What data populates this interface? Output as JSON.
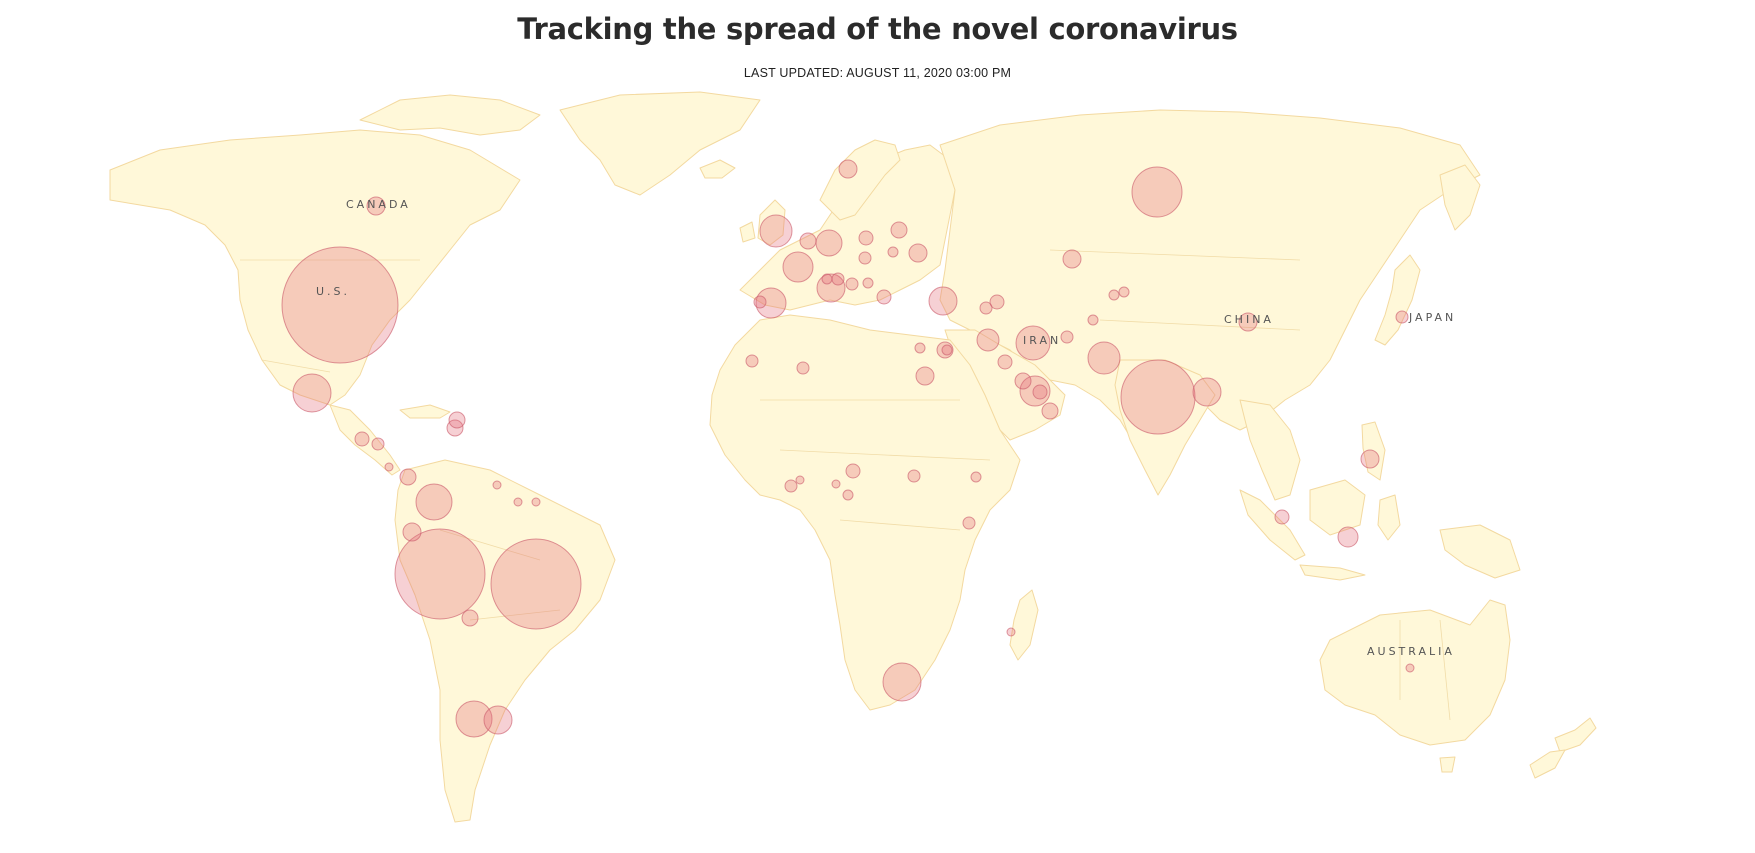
{
  "page": {
    "title": "Tracking the spread of the novel coronavirus",
    "last_updated": "LAST UPDATED: AUGUST 11, 2020 03:00 PM"
  },
  "map": {
    "type": "proportional-symbol world map",
    "colors": {
      "land": "#fff8d9",
      "border": "#f3d9a0",
      "bubble_fill": "#e26e78",
      "label": "#555555"
    },
    "labels": [
      {
        "id": "canada",
        "text": "CANADA"
      },
      {
        "id": "us",
        "text": "U.S."
      },
      {
        "id": "china",
        "text": "CHINA"
      },
      {
        "id": "japan",
        "text": "JAPAN"
      },
      {
        "id": "iran",
        "text": "IRAN"
      },
      {
        "id": "australia",
        "text": "AUSTRALIA"
      }
    ]
  }
}
